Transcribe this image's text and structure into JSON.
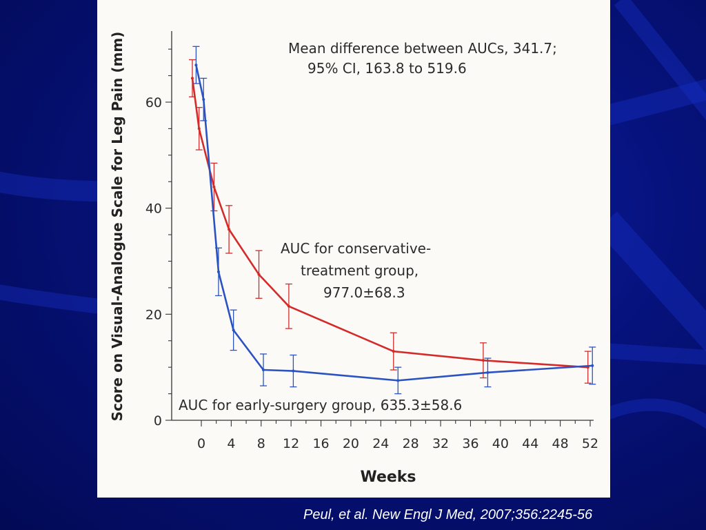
{
  "chart_data": {
    "type": "line",
    "title": "",
    "xlabel": "Weeks",
    "ylabel": "Score on Visual-Analogue Scale for Leg Pain (mm)",
    "xlim": [
      -2.5,
      53
    ],
    "ylim": [
      0,
      72
    ],
    "x_ticks": [
      0,
      4,
      8,
      12,
      16,
      20,
      24,
      28,
      32,
      36,
      40,
      44,
      48,
      52
    ],
    "y_ticks": [
      0,
      20,
      40,
      60
    ],
    "grid": false,
    "series": [
      {
        "name": "conservative-treatment group",
        "color": "#d32a2a",
        "points": [
          {
            "x": -1.2,
            "y": 64.5,
            "err": 3.5
          },
          {
            "x": -0.3,
            "y": 55.0,
            "err": 4.0
          },
          {
            "x": 1.7,
            "y": 44.0,
            "err": 4.5
          },
          {
            "x": 3.7,
            "y": 36.0,
            "err": 4.5
          },
          {
            "x": 7.7,
            "y": 27.5,
            "err": 4.5
          },
          {
            "x": 11.7,
            "y": 21.5,
            "err": 4.2
          },
          {
            "x": 25.7,
            "y": 13.0,
            "err": 3.5
          },
          {
            "x": 37.7,
            "y": 11.3,
            "err": 3.3
          },
          {
            "x": 51.7,
            "y": 10.0,
            "err": 3.0
          }
        ]
      },
      {
        "name": "early-surgery group",
        "color": "#2a52c0",
        "points": [
          {
            "x": -0.7,
            "y": 67.0,
            "err": 3.5
          },
          {
            "x": 0.3,
            "y": 60.5,
            "err": 4.0
          },
          {
            "x": 2.3,
            "y": 28.0,
            "err": 4.5
          },
          {
            "x": 4.3,
            "y": 17.0,
            "err": 3.8
          },
          {
            "x": 8.3,
            "y": 9.5,
            "err": 3.0
          },
          {
            "x": 12.3,
            "y": 9.3,
            "err": 3.0
          },
          {
            "x": 26.3,
            "y": 7.5,
            "err": 2.5
          },
          {
            "x": 38.3,
            "y": 9.0,
            "err": 2.7
          },
          {
            "x": 52.3,
            "y": 10.3,
            "err": 3.5
          }
        ]
      }
    ],
    "annotations": {
      "mean_diff_line1": "Mean difference between AUCs, 341.7;",
      "mean_diff_line2": "95% CI, 163.8 to 519.6",
      "conservative_line1": "AUC for conservative-",
      "conservative_line2": "treatment group,",
      "conservative_line3": "977.0±68.3",
      "surgery_line1": "AUC for early-surgery group, 635.3±58.6"
    }
  },
  "citation": "Peul, et al.  New Engl J Med, 2007;356:2245-56"
}
